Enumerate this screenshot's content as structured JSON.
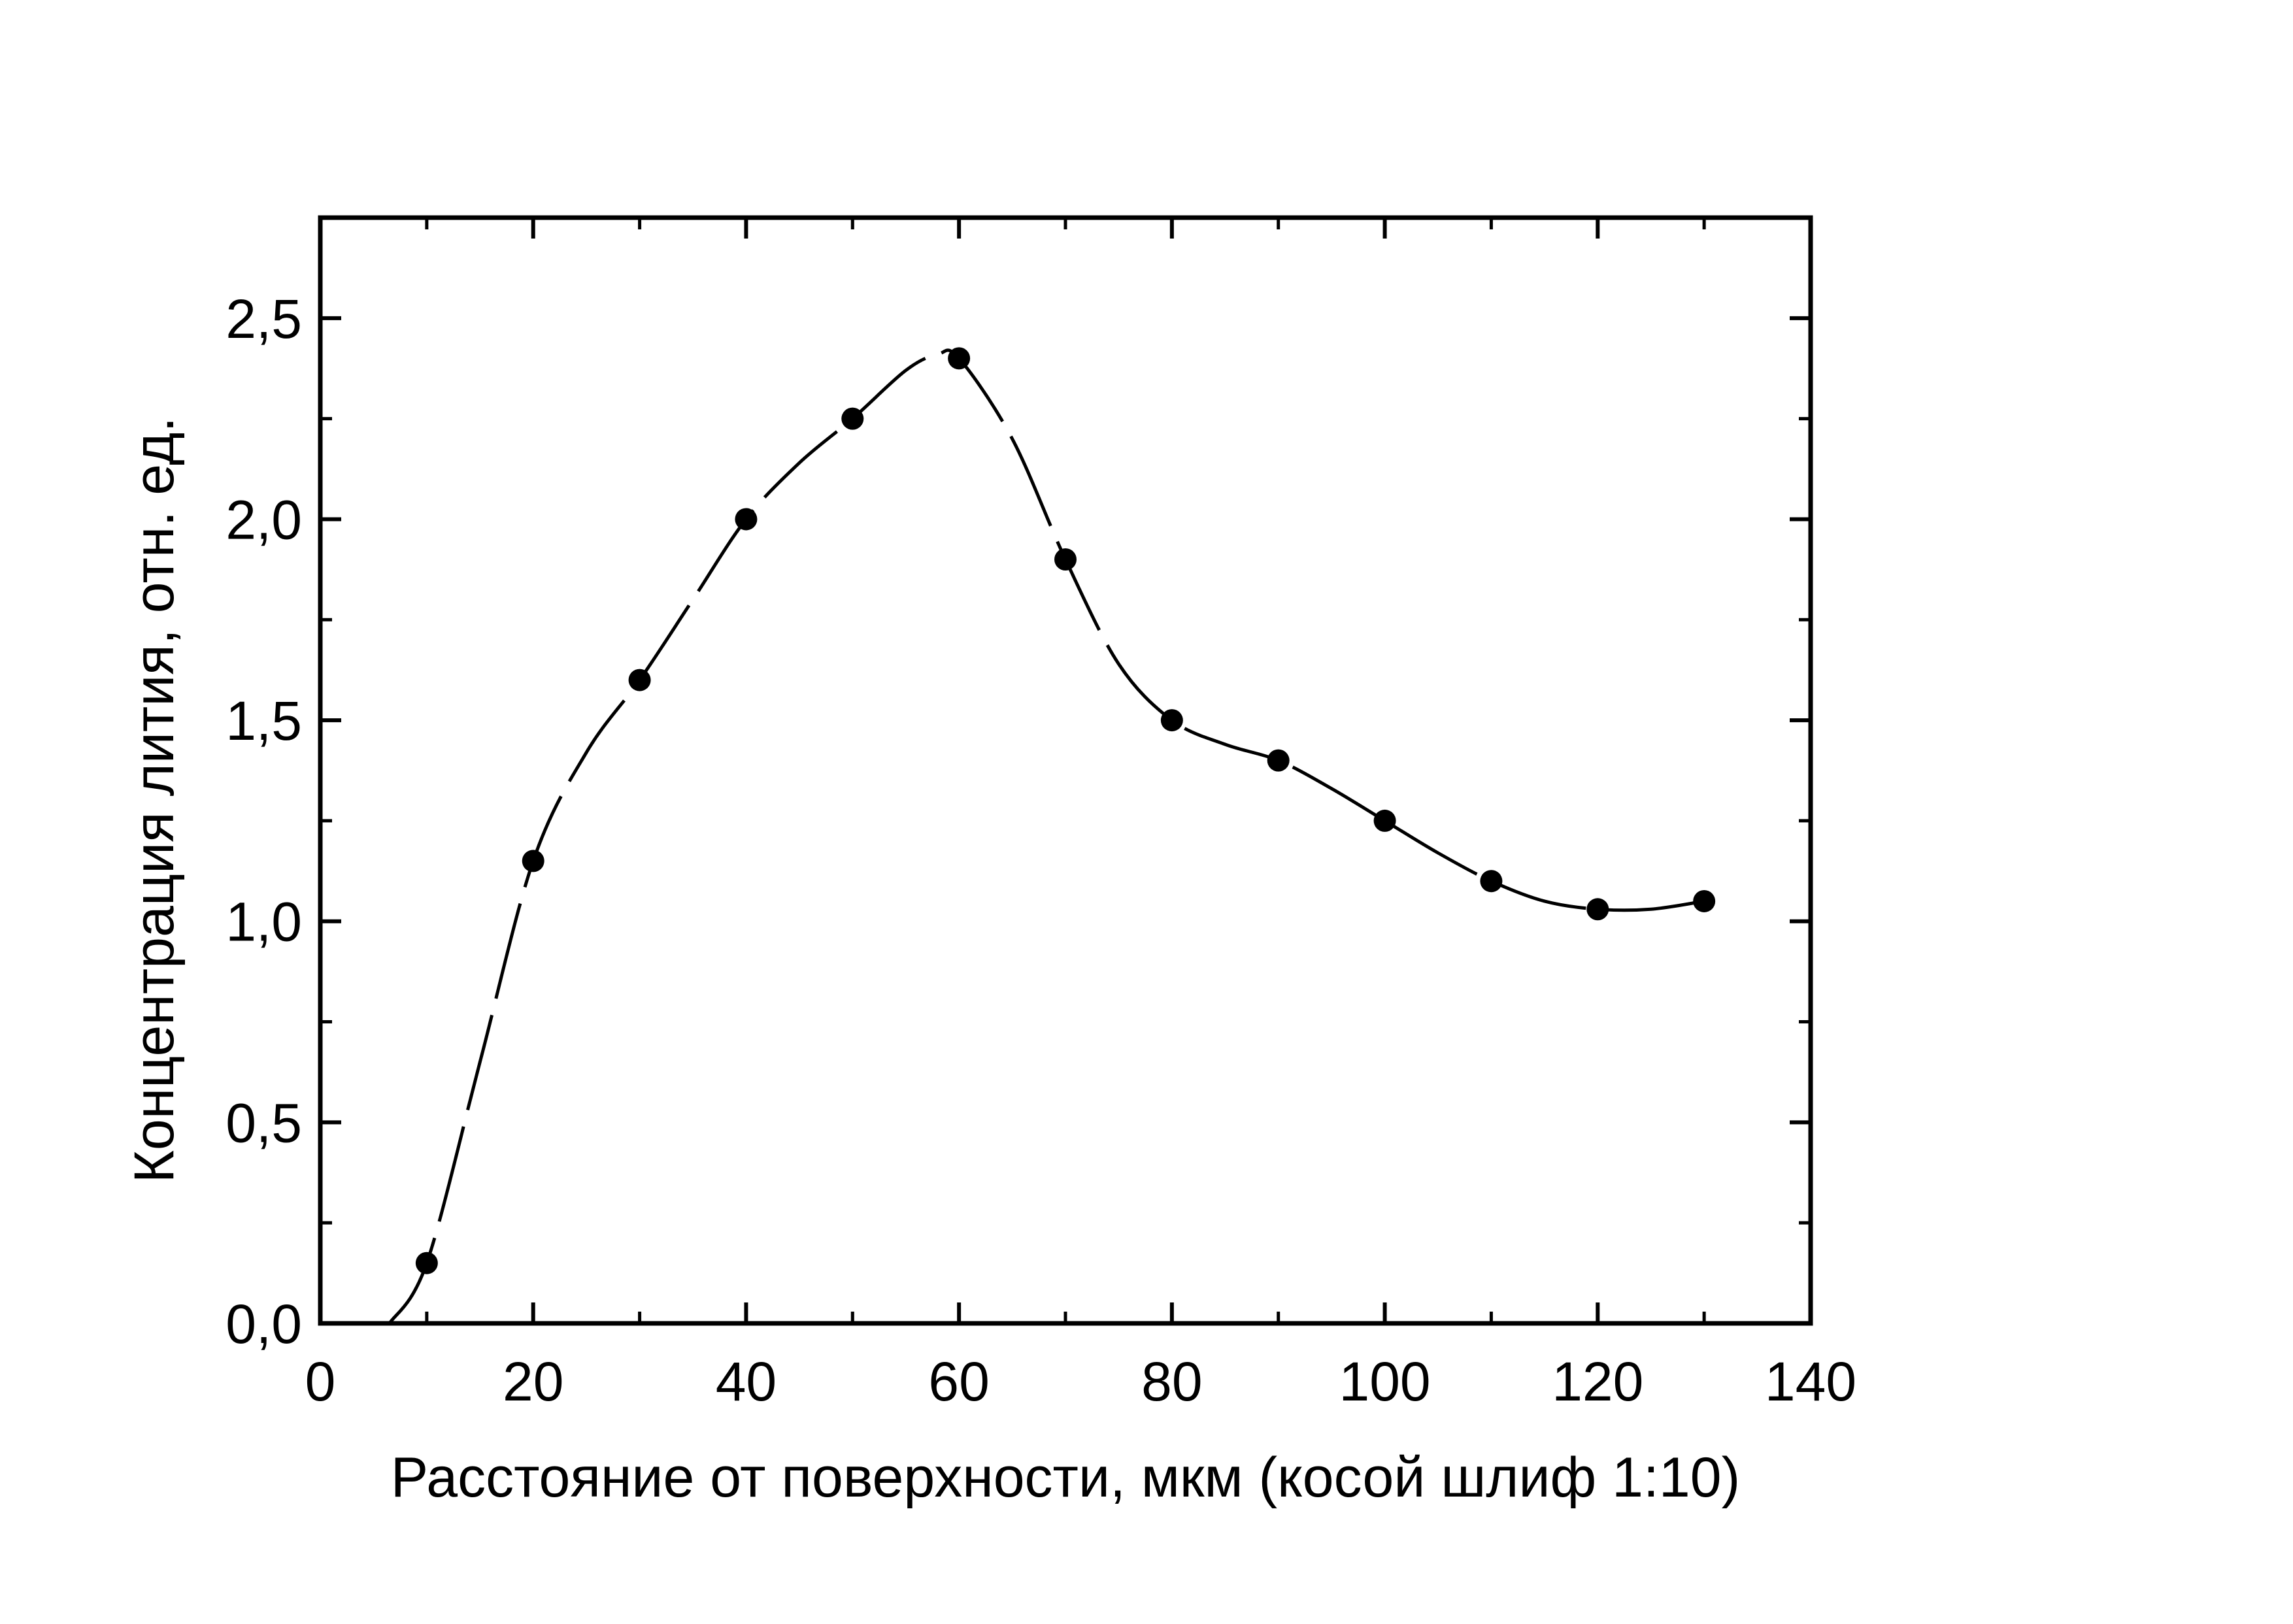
{
  "chart_data": {
    "type": "scatter",
    "xlabel": "Расстояние от поверхности, мкм (косой шлиф 1:10)",
    "ylabel": "Концентрация лития, отн. ед.",
    "xlim": [
      0,
      140
    ],
    "ylim": [
      0,
      2.75
    ],
    "x_ticks": [
      0,
      20,
      40,
      60,
      80,
      100,
      120,
      140
    ],
    "x_tick_labels": [
      "0",
      "20",
      "40",
      "60",
      "80",
      "100",
      "120",
      "140"
    ],
    "y_ticks": [
      0,
      0.5,
      1.0,
      1.5,
      2.0,
      2.5
    ],
    "y_tick_labels": [
      "0,0",
      "0,5",
      "1,0",
      "1,5",
      "2,0",
      "2,5"
    ],
    "grid": false,
    "series": [
      {
        "points": [
          {
            "x": 10,
            "y": 0.15
          },
          {
            "x": 20,
            "y": 1.15
          },
          {
            "x": 30,
            "y": 1.6
          },
          {
            "x": 40,
            "y": 2.0
          },
          {
            "x": 50,
            "y": 2.25
          },
          {
            "x": 60,
            "y": 2.4
          },
          {
            "x": 70,
            "y": 1.9
          },
          {
            "x": 80,
            "y": 1.5
          },
          {
            "x": 90,
            "y": 1.4
          },
          {
            "x": 100,
            "y": 1.25
          },
          {
            "x": 110,
            "y": 1.1
          },
          {
            "x": 120,
            "y": 1.03
          },
          {
            "x": 130,
            "y": 1.05
          }
        ],
        "fit_curve": [
          {
            "x": 6.5,
            "y": 0.0
          },
          {
            "x": 10,
            "y": 0.15
          },
          {
            "x": 15,
            "y": 0.65
          },
          {
            "x": 20,
            "y": 1.15
          },
          {
            "x": 25,
            "y": 1.42
          },
          {
            "x": 30,
            "y": 1.6
          },
          {
            "x": 35,
            "y": 1.8
          },
          {
            "x": 40,
            "y": 2.0
          },
          {
            "x": 45,
            "y": 2.14
          },
          {
            "x": 50,
            "y": 2.25
          },
          {
            "x": 55,
            "y": 2.37
          },
          {
            "x": 58,
            "y": 2.41
          },
          {
            "x": 60,
            "y": 2.4
          },
          {
            "x": 65,
            "y": 2.2
          },
          {
            "x": 70,
            "y": 1.9
          },
          {
            "x": 75,
            "y": 1.64
          },
          {
            "x": 80,
            "y": 1.5
          },
          {
            "x": 85,
            "y": 1.44
          },
          {
            "x": 90,
            "y": 1.4
          },
          {
            "x": 95,
            "y": 1.33
          },
          {
            "x": 100,
            "y": 1.25
          },
          {
            "x": 105,
            "y": 1.17
          },
          {
            "x": 110,
            "y": 1.1
          },
          {
            "x": 115,
            "y": 1.05
          },
          {
            "x": 120,
            "y": 1.03
          },
          {
            "x": 125,
            "y": 1.03
          },
          {
            "x": 130,
            "y": 1.05
          }
        ],
        "line_style": "dashed",
        "marker": "filled-circle",
        "color": "#000000"
      }
    ]
  }
}
